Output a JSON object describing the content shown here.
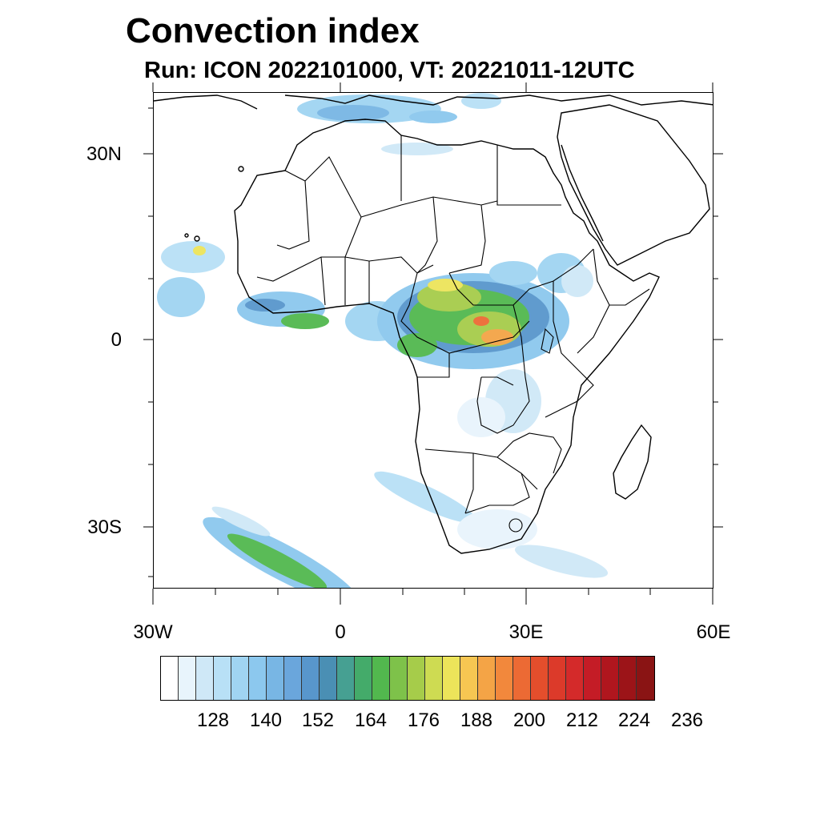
{
  "title": "Convection index",
  "subtitle": "Run: ICON 2022101000,  VT: 20221011-12UTC",
  "lat_labels": [
    "30N",
    "0",
    "30S"
  ],
  "lon_labels": [
    "30W",
    "0",
    "30E",
    "60E"
  ],
  "colorbar": {
    "tick_labels": [
      "128",
      "140",
      "152",
      "164",
      "176",
      "188",
      "200",
      "212",
      "224",
      "236"
    ],
    "colors": [
      "#ffffff",
      "#e8f4fc",
      "#cfe8f7",
      "#b8e0f6",
      "#a0d4f2",
      "#8cc8ee",
      "#78b6e4",
      "#6aa6dc",
      "#5896cc",
      "#4a8fb4",
      "#46a092",
      "#44ab6a",
      "#52b84e",
      "#7ec24a",
      "#a6cc4a",
      "#cedb52",
      "#ece45a",
      "#f6c652",
      "#f4a446",
      "#f2883c",
      "#ec6a34",
      "#e44e2c",
      "#dc3a2a",
      "#d42a2a",
      "#c41c26",
      "#b0161e",
      "#9c1418",
      "#8a1414"
    ]
  },
  "map": {
    "region": "Africa",
    "lon_range": [
      -30,
      60
    ],
    "lat_range": [
      -40,
      40
    ]
  }
}
